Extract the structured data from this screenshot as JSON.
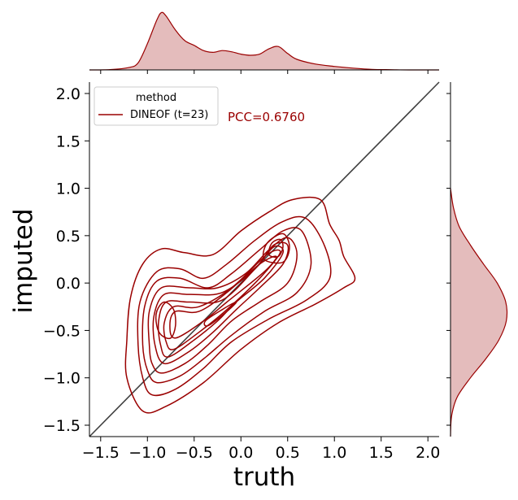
{
  "chart_data": {
    "type": "kde-jointplot",
    "xlabel": "truth",
    "ylabel": "imputed",
    "xlim": [
      -1.62,
      2.12
    ],
    "ylim": [
      -1.62,
      2.12
    ],
    "xticks": [
      "−1.5",
      "−1.0",
      "−0.5",
      "0.0",
      "0.5",
      "1.0",
      "1.5",
      "2.0"
    ],
    "yticks": [
      "−1.5",
      "−1.0",
      "−0.5",
      "0.0",
      "0.5",
      "1.0",
      "1.5",
      "2.0"
    ],
    "xtick_values": [
      -1.5,
      -1.0,
      -0.5,
      0.0,
      0.5,
      1.0,
      1.5,
      2.0
    ],
    "ytick_values": [
      -1.5,
      -1.0,
      -0.5,
      0.0,
      0.5,
      1.0,
      1.5,
      2.0
    ],
    "legend": {
      "title": "method",
      "entries": [
        "DINEOF (t=23)"
      ],
      "placement": "top-left"
    },
    "annotation": "PCC=0.6760",
    "series_color": "#9a0000",
    "fill_color": "#e4bcbc",
    "diagonal": {
      "from": [
        -1.62,
        -1.62
      ],
      "to": [
        2.12,
        2.12
      ],
      "color": "#404040"
    },
    "contours": [
      [
        [
          -1.05,
          -1.35
        ],
        [
          -0.8,
          -1.3
        ],
        [
          -0.4,
          -1.05
        ],
        [
          0.0,
          -0.7
        ],
        [
          0.4,
          -0.42
        ],
        [
          0.8,
          -0.22
        ],
        [
          1.1,
          -0.05
        ],
        [
          1.22,
          0.05
        ],
        [
          1.1,
          0.28
        ],
        [
          1.05,
          0.45
        ],
        [
          0.95,
          0.62
        ],
        [
          0.85,
          0.88
        ],
        [
          0.55,
          0.88
        ],
        [
          0.3,
          0.75
        ],
        [
          0.0,
          0.55
        ],
        [
          -0.3,
          0.3
        ],
        [
          -0.6,
          0.32
        ],
        [
          -0.85,
          0.36
        ],
        [
          -1.05,
          0.2
        ],
        [
          -1.18,
          -0.15
        ],
        [
          -1.22,
          -0.6
        ],
        [
          -1.22,
          -1.0
        ]
      ],
      [
        [
          -0.95,
          -1.18
        ],
        [
          -0.7,
          -1.12
        ],
        [
          -0.4,
          -0.9
        ],
        [
          -0.1,
          -0.62
        ],
        [
          0.3,
          -0.38
        ],
        [
          0.7,
          -0.18
        ],
        [
          0.95,
          0.05
        ],
        [
          0.9,
          0.38
        ],
        [
          0.7,
          0.68
        ],
        [
          0.45,
          0.65
        ],
        [
          0.15,
          0.45
        ],
        [
          -0.15,
          0.2
        ],
        [
          -0.4,
          0.05
        ],
        [
          -0.65,
          0.15
        ],
        [
          -0.9,
          0.12
        ],
        [
          -1.08,
          -0.2
        ],
        [
          -1.1,
          -0.65
        ],
        [
          -1.05,
          -1.0
        ]
      ],
      [
        [
          -0.9,
          -1.05
        ],
        [
          -0.65,
          -0.98
        ],
        [
          -0.4,
          -0.8
        ],
        [
          -0.1,
          -0.55
        ],
        [
          0.25,
          -0.3
        ],
        [
          0.6,
          -0.1
        ],
        [
          0.75,
          0.2
        ],
        [
          0.65,
          0.55
        ],
        [
          0.45,
          0.55
        ],
        [
          0.2,
          0.35
        ],
        [
          -0.1,
          0.1
        ],
        [
          -0.35,
          -0.05
        ],
        [
          -0.65,
          0.05
        ],
        [
          -0.9,
          0.02
        ],
        [
          -1.03,
          -0.25
        ],
        [
          -1.05,
          -0.65
        ],
        [
          -1.0,
          -0.92
        ]
      ],
      [
        [
          -0.85,
          -0.95
        ],
        [
          -0.6,
          -0.85
        ],
        [
          -0.35,
          -0.65
        ],
        [
          -0.1,
          -0.4
        ],
        [
          0.2,
          -0.2
        ],
        [
          0.5,
          0.0
        ],
        [
          0.6,
          0.3
        ],
        [
          0.5,
          0.48
        ],
        [
          0.3,
          0.35
        ],
        [
          0.05,
          0.1
        ],
        [
          -0.25,
          -0.05
        ],
        [
          -0.55,
          -0.05
        ],
        [
          -0.85,
          -0.05
        ],
        [
          -0.98,
          -0.3
        ],
        [
          -0.98,
          -0.65
        ],
        [
          -0.95,
          -0.85
        ]
      ],
      [
        [
          -0.82,
          -0.85
        ],
        [
          -0.55,
          -0.72
        ],
        [
          -0.3,
          -0.52
        ],
        [
          -0.05,
          -0.28
        ],
        [
          0.2,
          -0.05
        ],
        [
          0.45,
          0.2
        ],
        [
          0.5,
          0.4
        ],
        [
          0.35,
          0.4
        ],
        [
          0.15,
          0.15
        ],
        [
          -0.2,
          -0.1
        ],
        [
          -0.55,
          -0.12
        ],
        [
          -0.82,
          -0.12
        ],
        [
          -0.93,
          -0.35
        ],
        [
          -0.92,
          -0.65
        ]
      ],
      [
        [
          -0.78,
          -0.78
        ],
        [
          -0.5,
          -0.6
        ],
        [
          -0.25,
          -0.4
        ],
        [
          -0.05,
          -0.2
        ],
        [
          0.25,
          0.05
        ],
        [
          0.45,
          0.32
        ],
        [
          0.35,
          0.38
        ],
        [
          0.15,
          0.15
        ],
        [
          -0.2,
          -0.18
        ],
        [
          -0.55,
          -0.2
        ],
        [
          -0.8,
          -0.2
        ],
        [
          -0.88,
          -0.4
        ],
        [
          -0.86,
          -0.65
        ]
      ],
      [
        [
          -0.72,
          -0.7
        ],
        [
          -0.45,
          -0.52
        ],
        [
          -0.15,
          -0.28
        ],
        [
          0.2,
          0.05
        ],
        [
          0.42,
          0.32
        ],
        [
          0.28,
          0.3
        ],
        [
          -0.1,
          -0.05
        ],
        [
          -0.45,
          -0.25
        ],
        [
          -0.72,
          -0.25
        ],
        [
          -0.82,
          -0.42
        ],
        [
          -0.8,
          -0.62
        ]
      ],
      [
        [
          -0.7,
          -0.58
        ],
        [
          -0.4,
          -0.4
        ],
        [
          -0.15,
          -0.2
        ],
        [
          0.25,
          0.12
        ],
        [
          0.38,
          0.28
        ],
        [
          0.2,
          0.2
        ],
        [
          -0.15,
          -0.1
        ],
        [
          -0.45,
          -0.3
        ],
        [
          -0.7,
          -0.3
        ],
        [
          -0.76,
          -0.45
        ]
      ],
      [
        [
          -0.85,
          -0.55
        ],
        [
          -0.75,
          -0.58
        ],
        [
          -0.7,
          -0.45
        ],
        [
          -0.72,
          -0.28
        ],
        [
          -0.82,
          -0.2
        ],
        [
          -0.9,
          -0.3
        ],
        [
          -0.9,
          -0.45
        ]
      ],
      [
        [
          0.3,
          0.3
        ],
        [
          0.4,
          0.28
        ],
        [
          0.45,
          0.38
        ],
        [
          0.42,
          0.46
        ],
        [
          0.33,
          0.42
        ]
      ],
      [
        [
          0.25,
          0.25
        ],
        [
          0.45,
          0.22
        ],
        [
          0.52,
          0.38
        ],
        [
          0.45,
          0.52
        ],
        [
          0.28,
          0.42
        ]
      ],
      [
        [
          -0.35,
          -0.45
        ],
        [
          -0.15,
          -0.3
        ],
        [
          -0.05,
          -0.2
        ],
        [
          -0.2,
          -0.28
        ],
        [
          -0.38,
          -0.4
        ]
      ]
    ],
    "x_density": {
      "x": [
        -1.62,
        -1.4,
        -1.2,
        -1.1,
        -1.0,
        -0.9,
        -0.85,
        -0.8,
        -0.7,
        -0.6,
        -0.5,
        -0.4,
        -0.3,
        -0.2,
        -0.1,
        0.0,
        0.1,
        0.2,
        0.3,
        0.4,
        0.5,
        0.6,
        0.8,
        1.0,
        1.2,
        1.4,
        1.6,
        1.8,
        2.12
      ],
      "y": [
        0.0,
        0.005,
        0.04,
        0.12,
        0.45,
        0.85,
        0.98,
        0.92,
        0.68,
        0.5,
        0.42,
        0.33,
        0.3,
        0.33,
        0.31,
        0.27,
        0.25,
        0.27,
        0.36,
        0.4,
        0.28,
        0.18,
        0.1,
        0.06,
        0.03,
        0.01,
        0.004,
        0.0,
        0.0
      ]
    },
    "y_density": {
      "y": [
        -1.62,
        -1.4,
        -1.2,
        -1.0,
        -0.8,
        -0.6,
        -0.4,
        -0.2,
        0.0,
        0.2,
        0.4,
        0.6,
        0.8,
        1.0
      ],
      "x": [
        0.0,
        0.02,
        0.12,
        0.35,
        0.62,
        0.85,
        0.98,
        0.97,
        0.82,
        0.58,
        0.35,
        0.15,
        0.05,
        0.0
      ]
    }
  }
}
